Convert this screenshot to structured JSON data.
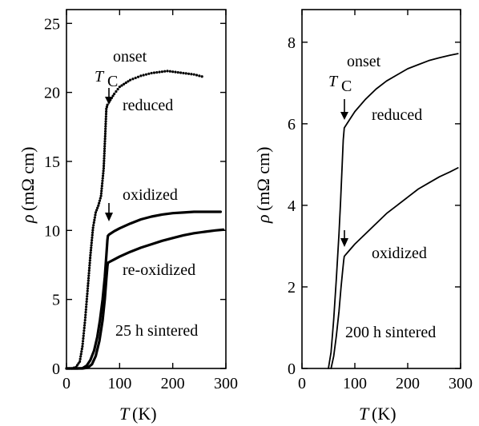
{
  "chart_data": [
    {
      "type": "line",
      "panel": "left",
      "xlim": [
        0,
        300
      ],
      "ylim": [
        0,
        26
      ],
      "x_ticks": [
        0,
        100,
        200,
        300
      ],
      "y_ticks": [
        0,
        5,
        10,
        15,
        20,
        25
      ],
      "x_tick_labels": [
        "0",
        "100",
        "200",
        "300"
      ],
      "y_tick_labels": [
        "0",
        "5",
        "10",
        "15",
        "20",
        "25"
      ],
      "xlabel_sym": "T",
      "xlabel_unit": "(K)",
      "ylabel_sym": "ρ",
      "ylabel_unit": "(mΩ cm)",
      "tc_label_main": "T",
      "tc_label_sub": "C",
      "tc_label_sup": "onset",
      "sample_label": "25 h sintered",
      "series": [
        {
          "name": "reduced",
          "style": "dotted",
          "x": [
            0,
            10,
            18,
            25,
            30,
            35,
            40,
            45,
            50,
            55,
            60,
            65,
            70,
            73,
            75,
            77,
            80,
            90,
            100,
            120,
            140,
            160,
            180,
            190,
            200,
            210,
            220,
            240,
            260
          ],
          "y": [
            0,
            0,
            0.1,
            0.5,
            1.6,
            3.5,
            5.8,
            8.2,
            10.2,
            11.3,
            11.8,
            12.5,
            14.5,
            17.0,
            18.8,
            19.1,
            19.3,
            19.9,
            20.4,
            20.9,
            21.2,
            21.4,
            21.5,
            21.55,
            21.5,
            21.45,
            21.4,
            21.3,
            21.1
          ]
        },
        {
          "name": "oxidized",
          "style": "solid",
          "x": [
            0,
            20,
            30,
            38,
            45,
            52,
            58,
            63,
            68,
            72,
            75,
            77,
            78,
            80,
            90,
            100,
            120,
            140,
            160,
            180,
            200,
            220,
            240,
            260,
            280,
            290
          ],
          "y": [
            0,
            0,
            0.02,
            0.2,
            0.6,
            1.3,
            2.3,
            3.5,
            5.0,
            6.6,
            8.2,
            9.3,
            9.6,
            9.7,
            9.95,
            10.15,
            10.5,
            10.8,
            11.0,
            11.15,
            11.25,
            11.3,
            11.35,
            11.35,
            11.35,
            11.35
          ]
        },
        {
          "name": "re-oxidized",
          "style": "solid",
          "x": [
            0,
            30,
            40,
            48,
            55,
            62,
            68,
            72,
            75,
            77,
            78,
            80,
            90,
            100,
            120,
            140,
            160,
            180,
            200,
            220,
            240,
            260,
            280,
            295
          ],
          "y": [
            0,
            0,
            0.05,
            0.3,
            0.9,
            2.0,
            3.5,
            5.0,
            6.5,
            7.4,
            7.65,
            7.7,
            7.9,
            8.1,
            8.45,
            8.75,
            9.0,
            9.25,
            9.45,
            9.65,
            9.8,
            9.9,
            10.0,
            10.05
          ]
        }
      ],
      "onset_arrows_x": [
        80,
        80
      ]
    },
    {
      "type": "line",
      "panel": "right",
      "xlim": [
        0,
        300
      ],
      "ylim": [
        0,
        8.8
      ],
      "x_ticks": [
        0,
        100,
        200,
        300
      ],
      "y_ticks": [
        0,
        2,
        4,
        6,
        8
      ],
      "x_tick_labels": [
        "0",
        "100",
        "200",
        "300"
      ],
      "y_tick_labels": [
        "0",
        "2",
        "4",
        "6",
        "8"
      ],
      "xlabel_sym": "T",
      "xlabel_unit": "(K)",
      "ylabel_sym": "ρ",
      "ylabel_unit": "(mΩ cm)",
      "tc_label_main": "T",
      "tc_label_sub": "C",
      "tc_label_sup": "onset",
      "sample_label": "200 h sintered",
      "series": [
        {
          "name": "reduced",
          "style": "solid",
          "x": [
            50,
            55,
            60,
            65,
            70,
            73,
            76,
            78,
            80,
            90,
            100,
            120,
            140,
            160,
            180,
            200,
            220,
            240,
            260,
            280,
            295
          ],
          "y": [
            0,
            0.4,
            1.2,
            2.2,
            3.3,
            4.1,
            5.0,
            5.6,
            5.9,
            6.1,
            6.3,
            6.6,
            6.85,
            7.05,
            7.2,
            7.35,
            7.45,
            7.55,
            7.62,
            7.68,
            7.72
          ]
        },
        {
          "name": "oxidized",
          "style": "solid",
          "x": [
            55,
            60,
            65,
            70,
            74,
            77,
            79,
            80,
            90,
            100,
            120,
            140,
            160,
            180,
            200,
            220,
            240,
            260,
            280,
            295
          ],
          "y": [
            0,
            0.3,
            0.8,
            1.4,
            2.0,
            2.4,
            2.65,
            2.75,
            2.9,
            3.05,
            3.3,
            3.55,
            3.8,
            4.0,
            4.2,
            4.4,
            4.55,
            4.7,
            4.82,
            4.92
          ]
        }
      ],
      "onset_arrows_x": [
        80,
        80
      ]
    }
  ]
}
